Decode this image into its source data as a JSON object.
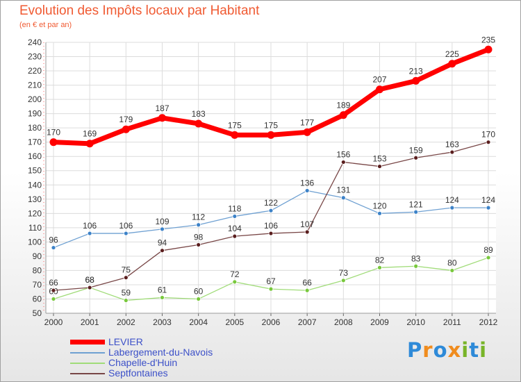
{
  "title": "Evolution des Impôts locaux par Habitant",
  "subtitle": "(en € et par an)",
  "chart_data": {
    "type": "line",
    "x": [
      "2000",
      "2001",
      "2002",
      "2003",
      "2004",
      "2005",
      "2006",
      "2007",
      "2008",
      "2009",
      "2010",
      "2011",
      "2012"
    ],
    "ylim": [
      50,
      240
    ],
    "y_ticks": [
      50,
      60,
      70,
      80,
      90,
      100,
      110,
      120,
      130,
      140,
      150,
      160,
      170,
      180,
      190,
      200,
      210,
      220,
      230,
      240
    ],
    "grid": true,
    "legend_position": "bottom-left",
    "series": [
      {
        "name": "LEVIER",
        "color": "#ff0000",
        "line_width": 7,
        "marker_r": 5.5,
        "values": [
          170,
          169,
          179,
          187,
          183,
          175,
          175,
          177,
          189,
          207,
          213,
          225,
          235
        ]
      },
      {
        "name": "Labergement-du-Navois",
        "color": "#6ea0d2",
        "marker_color": "#3c82c8",
        "line_width": 1.3,
        "marker_r": 3,
        "values": [
          96,
          106,
          106,
          109,
          112,
          118,
          122,
          136,
          131,
          120,
          121,
          124,
          124
        ]
      },
      {
        "name": "Chapelle-d'Huin",
        "color": "#a0dc78",
        "marker_color": "#78c83c",
        "line_width": 1.3,
        "marker_r": 3,
        "values": [
          60,
          68,
          59,
          61,
          60,
          72,
          67,
          66,
          73,
          82,
          83,
          80,
          89
        ]
      },
      {
        "name": "Septfontaines",
        "color": "#784646",
        "marker_color": "#5a1e1e",
        "line_width": 1.3,
        "marker_r": 3,
        "values": [
          66,
          68,
          75,
          94,
          98,
          104,
          106,
          107,
          156,
          153,
          159,
          163,
          170
        ]
      }
    ]
  },
  "logo": {
    "text": "Proxiti",
    "colors": [
      "#2e8ad8",
      "#f08c1e",
      "#2e8ad8",
      "#f08c1e",
      "#78b428",
      "#2e8ad8",
      "#78b428"
    ]
  }
}
